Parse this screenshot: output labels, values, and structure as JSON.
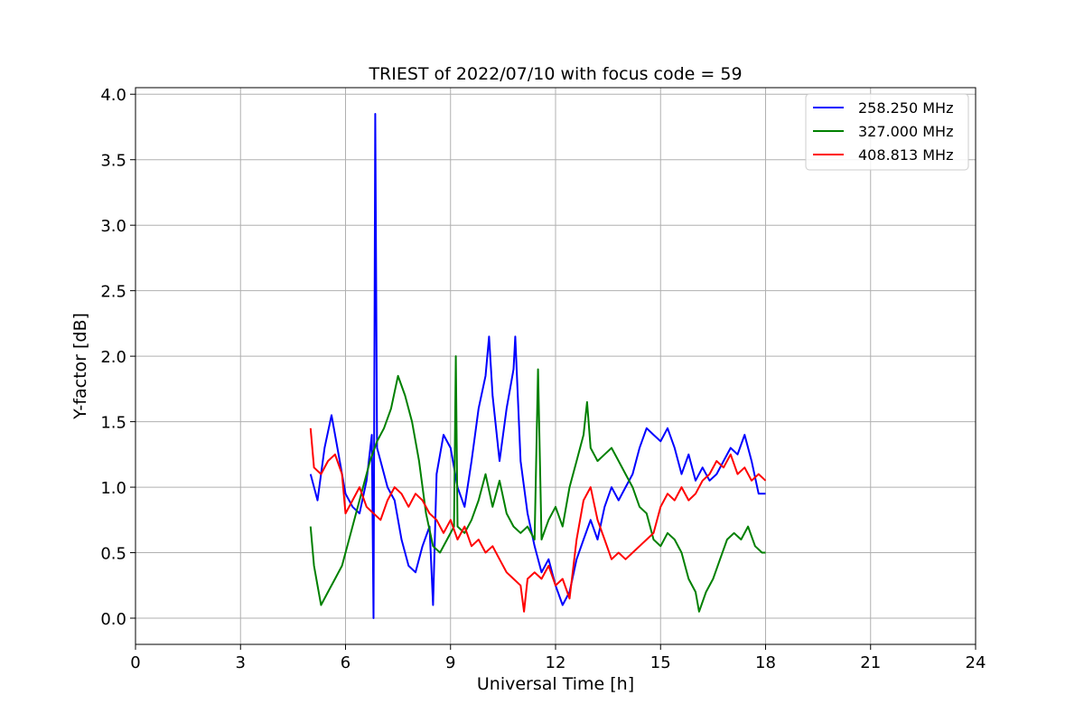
{
  "chart_data": {
    "type": "line",
    "title": "TRIEST of 2022/07/10 with focus code = 59",
    "xlabel": "Universal Time [h]",
    "ylabel": "Y-factor [dB]",
    "xlim": [
      0,
      24
    ],
    "ylim": [
      -0.2,
      4.05
    ],
    "xticks": [
      0,
      3,
      6,
      9,
      12,
      15,
      18,
      21,
      24
    ],
    "yticks": [
      0.0,
      0.5,
      1.0,
      1.5,
      2.0,
      2.5,
      3.0,
      3.5,
      4.0
    ],
    "ytick_labels": [
      "0.0",
      "0.5",
      "1.0",
      "1.5",
      "2.0",
      "2.5",
      "3.0",
      "3.5",
      "4.0"
    ],
    "grid": true,
    "legend_position": "top-right",
    "series": [
      {
        "name": "258.250 MHz",
        "color": "#0000ff",
        "points": [
          [
            5.0,
            1.1
          ],
          [
            5.2,
            0.9
          ],
          [
            5.4,
            1.3
          ],
          [
            5.6,
            1.55
          ],
          [
            5.8,
            1.25
          ],
          [
            6.0,
            0.95
          ],
          [
            6.2,
            0.85
          ],
          [
            6.4,
            0.8
          ],
          [
            6.6,
            1.05
          ],
          [
            6.75,
            1.4
          ],
          [
            6.8,
            0.0
          ],
          [
            6.85,
            3.85
          ],
          [
            6.9,
            1.3
          ],
          [
            7.0,
            1.2
          ],
          [
            7.2,
            1.0
          ],
          [
            7.4,
            0.9
          ],
          [
            7.6,
            0.6
          ],
          [
            7.8,
            0.4
          ],
          [
            8.0,
            0.35
          ],
          [
            8.2,
            0.55
          ],
          [
            8.4,
            0.7
          ],
          [
            8.5,
            0.1
          ],
          [
            8.6,
            1.1
          ],
          [
            8.8,
            1.4
          ],
          [
            9.0,
            1.3
          ],
          [
            9.2,
            1.0
          ],
          [
            9.4,
            0.85
          ],
          [
            9.6,
            1.2
          ],
          [
            9.8,
            1.6
          ],
          [
            10.0,
            1.85
          ],
          [
            10.1,
            2.15
          ],
          [
            10.2,
            1.7
          ],
          [
            10.4,
            1.2
          ],
          [
            10.6,
            1.6
          ],
          [
            10.8,
            1.9
          ],
          [
            10.85,
            2.15
          ],
          [
            11.0,
            1.2
          ],
          [
            11.2,
            0.8
          ],
          [
            11.4,
            0.55
          ],
          [
            11.6,
            0.35
          ],
          [
            11.8,
            0.45
          ],
          [
            12.0,
            0.25
          ],
          [
            12.2,
            0.1
          ],
          [
            12.4,
            0.2
          ],
          [
            12.6,
            0.45
          ],
          [
            12.8,
            0.6
          ],
          [
            13.0,
            0.75
          ],
          [
            13.2,
            0.6
          ],
          [
            13.4,
            0.85
          ],
          [
            13.6,
            1.0
          ],
          [
            13.8,
            0.9
          ],
          [
            14.0,
            1.0
          ],
          [
            14.2,
            1.1
          ],
          [
            14.4,
            1.3
          ],
          [
            14.6,
            1.45
          ],
          [
            14.8,
            1.4
          ],
          [
            15.0,
            1.35
          ],
          [
            15.2,
            1.45
          ],
          [
            15.4,
            1.3
          ],
          [
            15.6,
            1.1
          ],
          [
            15.8,
            1.25
          ],
          [
            16.0,
            1.05
          ],
          [
            16.2,
            1.15
          ],
          [
            16.4,
            1.05
          ],
          [
            16.6,
            1.1
          ],
          [
            16.8,
            1.2
          ],
          [
            17.0,
            1.3
          ],
          [
            17.2,
            1.25
          ],
          [
            17.4,
            1.4
          ],
          [
            17.6,
            1.2
          ],
          [
            17.8,
            0.95
          ],
          [
            18.0,
            0.95
          ]
        ]
      },
      {
        "name": "327.000 MHz",
        "color": "#008000",
        "points": [
          [
            5.0,
            0.7
          ],
          [
            5.1,
            0.4
          ],
          [
            5.2,
            0.25
          ],
          [
            5.3,
            0.1
          ],
          [
            5.5,
            0.2
          ],
          [
            5.7,
            0.3
          ],
          [
            5.9,
            0.4
          ],
          [
            6.1,
            0.6
          ],
          [
            6.3,
            0.8
          ],
          [
            6.5,
            1.0
          ],
          [
            6.7,
            1.2
          ],
          [
            6.9,
            1.35
          ],
          [
            7.1,
            1.45
          ],
          [
            7.3,
            1.6
          ],
          [
            7.5,
            1.85
          ],
          [
            7.7,
            1.7
          ],
          [
            7.9,
            1.5
          ],
          [
            8.1,
            1.2
          ],
          [
            8.3,
            0.8
          ],
          [
            8.5,
            0.55
          ],
          [
            8.7,
            0.5
          ],
          [
            8.9,
            0.6
          ],
          [
            9.1,
            0.7
          ],
          [
            9.15,
            2.0
          ],
          [
            9.2,
            0.7
          ],
          [
            9.4,
            0.65
          ],
          [
            9.6,
            0.75
          ],
          [
            9.8,
            0.9
          ],
          [
            10.0,
            1.1
          ],
          [
            10.2,
            0.85
          ],
          [
            10.4,
            1.05
          ],
          [
            10.6,
            0.8
          ],
          [
            10.8,
            0.7
          ],
          [
            11.0,
            0.65
          ],
          [
            11.2,
            0.7
          ],
          [
            11.4,
            0.6
          ],
          [
            11.5,
            1.9
          ],
          [
            11.6,
            0.6
          ],
          [
            11.8,
            0.75
          ],
          [
            12.0,
            0.85
          ],
          [
            12.2,
            0.7
          ],
          [
            12.4,
            1.0
          ],
          [
            12.6,
            1.2
          ],
          [
            12.8,
            1.4
          ],
          [
            12.9,
            1.65
          ],
          [
            13.0,
            1.3
          ],
          [
            13.2,
            1.2
          ],
          [
            13.4,
            1.25
          ],
          [
            13.6,
            1.3
          ],
          [
            13.8,
            1.2
          ],
          [
            14.0,
            1.1
          ],
          [
            14.2,
            1.0
          ],
          [
            14.4,
            0.85
          ],
          [
            14.6,
            0.8
          ],
          [
            14.8,
            0.6
          ],
          [
            15.0,
            0.55
          ],
          [
            15.2,
            0.65
          ],
          [
            15.4,
            0.6
          ],
          [
            15.6,
            0.5
          ],
          [
            15.8,
            0.3
          ],
          [
            16.0,
            0.2
          ],
          [
            16.1,
            0.05
          ],
          [
            16.3,
            0.2
          ],
          [
            16.5,
            0.3
          ],
          [
            16.7,
            0.45
          ],
          [
            16.9,
            0.6
          ],
          [
            17.1,
            0.65
          ],
          [
            17.3,
            0.6
          ],
          [
            17.5,
            0.7
          ],
          [
            17.7,
            0.55
          ],
          [
            17.9,
            0.5
          ],
          [
            18.0,
            0.5
          ]
        ]
      },
      {
        "name": "408.813 MHz",
        "color": "#ff0000",
        "points": [
          [
            5.0,
            1.45
          ],
          [
            5.1,
            1.15
          ],
          [
            5.3,
            1.1
          ],
          [
            5.5,
            1.2
          ],
          [
            5.7,
            1.25
          ],
          [
            5.9,
            1.1
          ],
          [
            6.0,
            0.8
          ],
          [
            6.2,
            0.9
          ],
          [
            6.4,
            1.0
          ],
          [
            6.6,
            0.85
          ],
          [
            6.8,
            0.8
          ],
          [
            7.0,
            0.75
          ],
          [
            7.2,
            0.9
          ],
          [
            7.4,
            1.0
          ],
          [
            7.6,
            0.95
          ],
          [
            7.8,
            0.85
          ],
          [
            8.0,
            0.95
          ],
          [
            8.2,
            0.9
          ],
          [
            8.4,
            0.8
          ],
          [
            8.6,
            0.75
          ],
          [
            8.8,
            0.65
          ],
          [
            9.0,
            0.75
          ],
          [
            9.2,
            0.6
          ],
          [
            9.4,
            0.7
          ],
          [
            9.6,
            0.55
          ],
          [
            9.8,
            0.6
          ],
          [
            10.0,
            0.5
          ],
          [
            10.2,
            0.55
          ],
          [
            10.4,
            0.45
          ],
          [
            10.6,
            0.35
          ],
          [
            10.8,
            0.3
          ],
          [
            11.0,
            0.25
          ],
          [
            11.1,
            0.05
          ],
          [
            11.2,
            0.3
          ],
          [
            11.4,
            0.35
          ],
          [
            11.6,
            0.3
          ],
          [
            11.8,
            0.4
          ],
          [
            12.0,
            0.25
          ],
          [
            12.2,
            0.3
          ],
          [
            12.4,
            0.15
          ],
          [
            12.6,
            0.6
          ],
          [
            12.8,
            0.9
          ],
          [
            13.0,
            1.0
          ],
          [
            13.2,
            0.75
          ],
          [
            13.4,
            0.6
          ],
          [
            13.6,
            0.45
          ],
          [
            13.8,
            0.5
          ],
          [
            14.0,
            0.45
          ],
          [
            14.2,
            0.5
          ],
          [
            14.4,
            0.55
          ],
          [
            14.6,
            0.6
          ],
          [
            14.8,
            0.65
          ],
          [
            15.0,
            0.85
          ],
          [
            15.2,
            0.95
          ],
          [
            15.4,
            0.9
          ],
          [
            15.6,
            1.0
          ],
          [
            15.8,
            0.9
          ],
          [
            16.0,
            0.95
          ],
          [
            16.2,
            1.05
          ],
          [
            16.4,
            1.1
          ],
          [
            16.6,
            1.2
          ],
          [
            16.8,
            1.15
          ],
          [
            17.0,
            1.25
          ],
          [
            17.2,
            1.1
          ],
          [
            17.4,
            1.15
          ],
          [
            17.6,
            1.05
          ],
          [
            17.8,
            1.1
          ],
          [
            18.0,
            1.05
          ]
        ]
      }
    ]
  }
}
